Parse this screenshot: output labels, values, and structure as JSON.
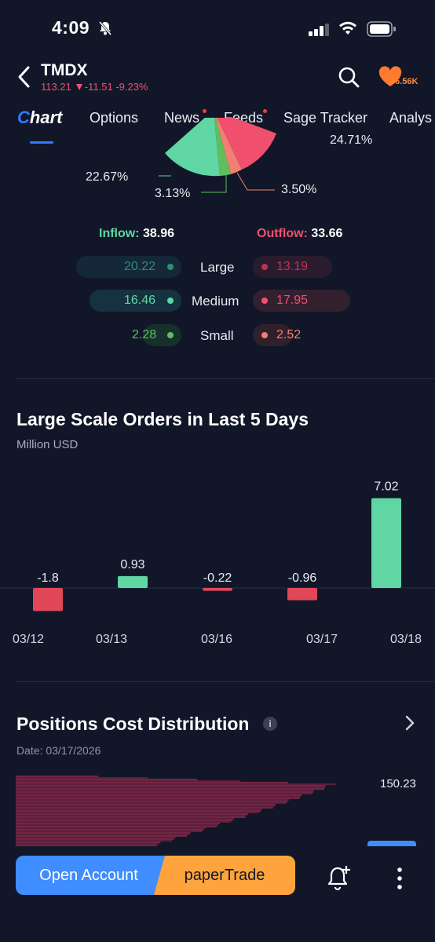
{
  "status_bar": {
    "time": "4:09"
  },
  "header": {
    "ticker": "TMDX",
    "price": "113.21",
    "change": "-11.51",
    "change_pct": "-9.23%",
    "watch_count": "36.56K"
  },
  "tabs": [
    {
      "label": "Chart",
      "active": true
    },
    {
      "label": "Options"
    },
    {
      "label": "News",
      "has_dot": true
    },
    {
      "label": "Feeds",
      "has_dot": true
    },
    {
      "label": "Sage Tracker"
    },
    {
      "label": "Analys"
    }
  ],
  "capital_flow": {
    "pie_labels": {
      "left": "22.67%",
      "bottom_left": "3.13%",
      "bottom_right": "3.50%",
      "top_right": "24.71%"
    },
    "inflow_label": "Inflow:",
    "inflow_total": "38.96",
    "outflow_label": "Outflow:",
    "outflow_total": "33.66",
    "rows": [
      {
        "label": "Large",
        "inflow": "20.22",
        "outflow": "13.19"
      },
      {
        "label": "Medium",
        "inflow": "16.46",
        "outflow": "17.95"
      },
      {
        "label": "Small",
        "inflow": "2.28",
        "outflow": "2.52"
      }
    ],
    "colors": {
      "in_large": "#2e8f6f",
      "in_medium": "#5fd6a4",
      "in_small": "#5fbf5c",
      "out_large": "#c0334f",
      "out_medium": "#f0506e",
      "out_small": "#f08072"
    }
  },
  "large_orders": {
    "title": "Large Scale Orders in Last 5 Days",
    "subtitle": "Million USD"
  },
  "chart_data": {
    "type": "bar",
    "title": "Large Scale Orders in Last 5 Days",
    "ylabel": "Million USD",
    "categories": [
      "03/12",
      "03/13",
      "03/16",
      "03/17",
      "03/18"
    ],
    "values": [
      -1.8,
      0.93,
      -0.22,
      -0.96,
      7.02
    ],
    "value_labels": [
      "-1.8",
      "0.93",
      "-0.22",
      "-0.96",
      "7.02"
    ],
    "colors": {
      "positive": "#5fd6a4",
      "negative": "#e0485a"
    }
  },
  "positions": {
    "title": "Positions Cost Distribution",
    "date": "Date: 03/17/2026",
    "max_price": "150.23"
  },
  "bottom": {
    "open_account": "Open Account",
    "paper_trade": "paperTrade"
  }
}
